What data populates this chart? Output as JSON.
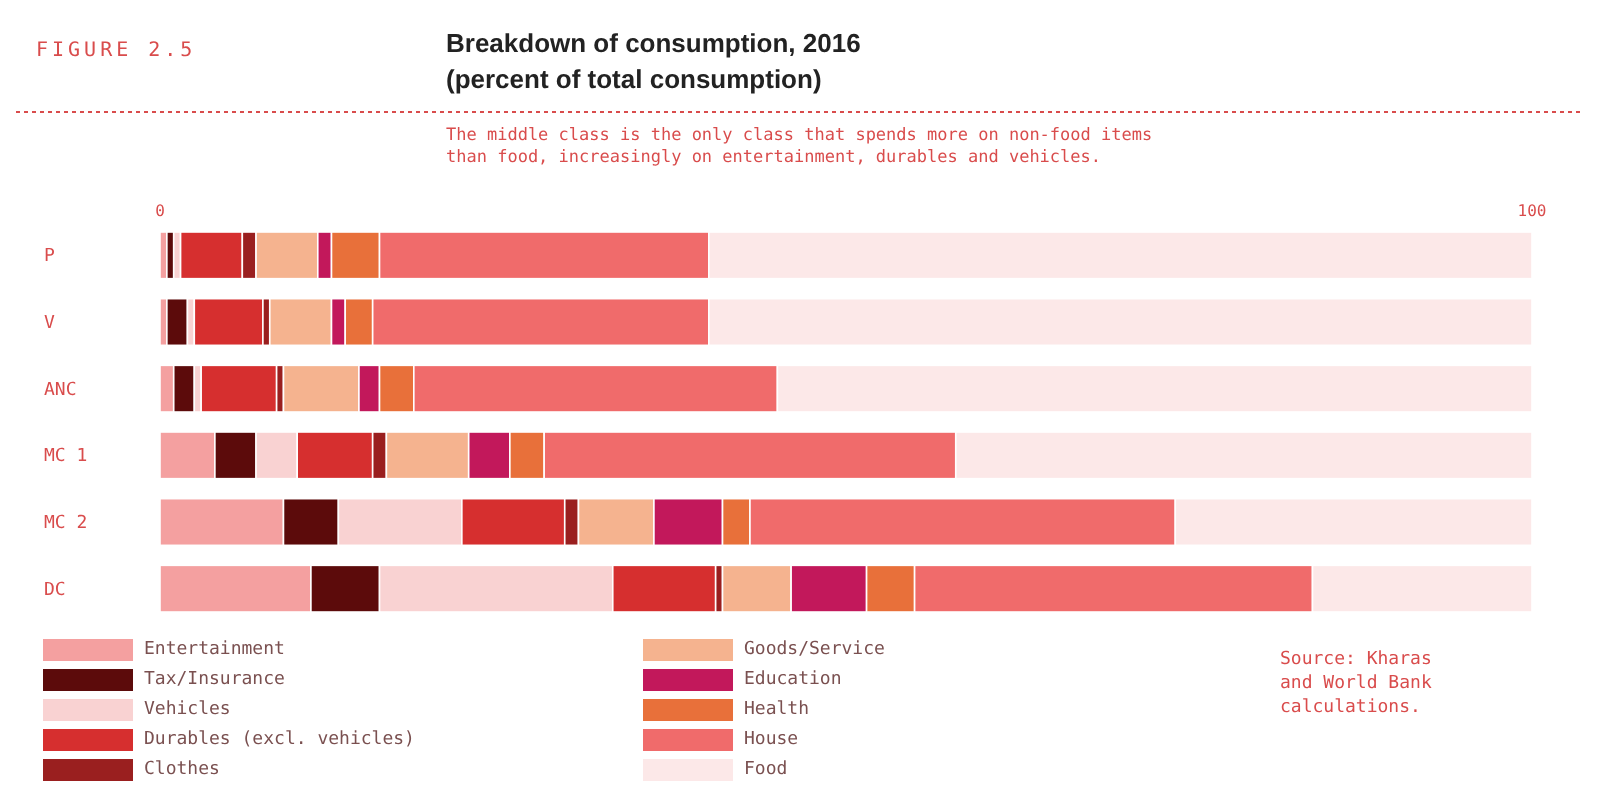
{
  "chart_data": {
    "type": "bar",
    "orientation": "horizontal",
    "stacked": true,
    "title": "Breakdown of consumption, 2016",
    "subtitle": "(percent of total consumption)",
    "annotations": [
      "FIGURE 2.5",
      "The middle class is the only class that spends more on non-food items than food, increasingly on entertainment, durables and vehicles.",
      "Source: Kharas and World Bank calculations."
    ],
    "categories": [
      "P",
      "V",
      "ANC",
      "MC 1",
      "MC 2",
      "DC"
    ],
    "xlim": [
      0,
      100
    ],
    "xticks": [
      0,
      100
    ],
    "legend": "bottom",
    "grid": false,
    "series": [
      {
        "name": "Entertainment",
        "color": "#f4a0a0",
        "values": [
          0.5,
          0.5,
          1,
          4,
          9,
          11
        ]
      },
      {
        "name": "Tax/Insurance",
        "color": "#5c0b0b",
        "values": [
          0.5,
          1.5,
          1.5,
          3,
          4,
          5
        ]
      },
      {
        "name": "Vehicles",
        "color": "#f9d2d2",
        "values": [
          0.5,
          0.5,
          0.5,
          3,
          9,
          17
        ]
      },
      {
        "name": "Durables (excl. vehicles)",
        "color": "#d62f2f",
        "values": [
          4.5,
          5,
          5.5,
          5.5,
          7.5,
          7.5
        ]
      },
      {
        "name": "Clothes",
        "color": "#9a1f1f",
        "values": [
          1,
          0.5,
          0.5,
          1,
          1,
          0.5
        ]
      },
      {
        "name": "Goods/Service",
        "color": "#f5b38f",
        "values": [
          4.5,
          4.5,
          5.5,
          6,
          5.5,
          5
        ]
      },
      {
        "name": "Education",
        "color": "#c2185b",
        "values": [
          1,
          1,
          1.5,
          3,
          5,
          5.5
        ]
      },
      {
        "name": "Health",
        "color": "#e8703a",
        "values": [
          3.5,
          2,
          2.5,
          2.5,
          2,
          3.5
        ]
      },
      {
        "name": "House",
        "color": "#f06b6b",
        "values": [
          24,
          24.5,
          26.5,
          30,
          31,
          29
        ]
      },
      {
        "name": "Food",
        "color": "#fce8e8",
        "values": [
          60,
          60,
          55,
          42,
          26,
          16
        ]
      }
    ]
  }
}
